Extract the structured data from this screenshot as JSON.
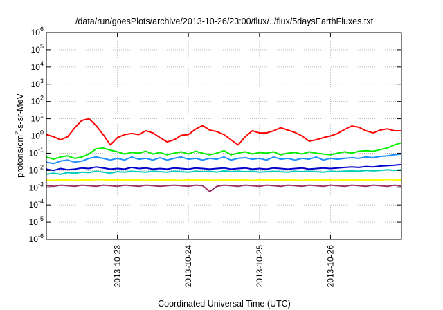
{
  "chart_data": {
    "type": "line",
    "title": "/data/run/goesPlots/archive/2013-10-26/23:00/flux/../flux/5daysEarthFluxes.txt",
    "xlabel": "Coordinated Universal Time (UTC)",
    "ylabel": {
      "prefix": "protons/cm",
      "sup": "2",
      "suffix": "-s-sr-MeV"
    },
    "x_range": [
      "2013-10-22",
      "2013-10-27"
    ],
    "xticks": [
      "2013-10-23",
      "2013-10-24",
      "2013-10-25",
      "2013-10-26"
    ],
    "yscale": "log",
    "ylim": [
      1e-06,
      1000000.0
    ],
    "yticks": [
      {
        "base": "10",
        "exp": "-6"
      },
      {
        "base": "10",
        "exp": "-5"
      },
      {
        "base": "10",
        "exp": "-4"
      },
      {
        "base": "10",
        "exp": "-3"
      },
      {
        "base": "10",
        "exp": "-2"
      },
      {
        "base": "10",
        "exp": "-1"
      },
      {
        "base": "10",
        "exp": "0"
      },
      {
        "base": "10",
        "exp": "1"
      },
      {
        "base": "10",
        "exp": "2"
      },
      {
        "base": "10",
        "exp": "3"
      },
      {
        "base": "10",
        "exp": "4"
      },
      {
        "base": "10",
        "exp": "5"
      },
      {
        "base": "10",
        "exp": "6"
      }
    ],
    "grid": true,
    "x_days": [
      0,
      0.1,
      0.2,
      0.3,
      0.4,
      0.5,
      0.6,
      0.7,
      0.8,
      0.9,
      1.0,
      1.1,
      1.2,
      1.3,
      1.4,
      1.5,
      1.6,
      1.7,
      1.8,
      1.9,
      2.0,
      2.1,
      2.2,
      2.3,
      2.4,
      2.5,
      2.6,
      2.7,
      2.8,
      2.9,
      3.0,
      3.1,
      3.2,
      3.3,
      3.4,
      3.5,
      3.6,
      3.7,
      3.8,
      3.9,
      4.0,
      4.1,
      4.2,
      4.3,
      4.4,
      4.5,
      4.6,
      4.7,
      4.8,
      4.9,
      5.0
    ],
    "series": [
      {
        "color": "#ff0000",
        "values": [
          1.2,
          0.9,
          0.6,
          0.9,
          3,
          8,
          10,
          4,
          1.2,
          0.3,
          0.8,
          1.2,
          1.4,
          1.2,
          2,
          1.5,
          0.8,
          0.45,
          0.6,
          1.1,
          1.2,
          2.5,
          4,
          2.2,
          1.8,
          1.2,
          0.6,
          0.3,
          0.9,
          2,
          1.5,
          1.5,
          2,
          3,
          2.2,
          1.6,
          1,
          0.5,
          0.6,
          0.8,
          1,
          1.4,
          2.4,
          3.8,
          3.2,
          2,
          1.5,
          2.2,
          2.6,
          2,
          2
        ]
      },
      {
        "color": "#00ee00",
        "values": [
          0.06,
          0.045,
          0.06,
          0.07,
          0.05,
          0.06,
          0.09,
          0.18,
          0.2,
          0.15,
          0.12,
          0.09,
          0.11,
          0.1,
          0.13,
          0.09,
          0.11,
          0.08,
          0.1,
          0.12,
          0.09,
          0.13,
          0.1,
          0.08,
          0.1,
          0.14,
          0.08,
          0.1,
          0.12,
          0.09,
          0.11,
          0.1,
          0.12,
          0.08,
          0.1,
          0.11,
          0.09,
          0.12,
          0.1,
          0.09,
          0.08,
          0.1,
          0.12,
          0.1,
          0.13,
          0.14,
          0.13,
          0.16,
          0.2,
          0.3,
          0.4
        ]
      },
      {
        "color": "#1e90ff",
        "values": [
          0.03,
          0.025,
          0.035,
          0.04,
          0.03,
          0.035,
          0.05,
          0.06,
          0.05,
          0.04,
          0.05,
          0.04,
          0.06,
          0.045,
          0.05,
          0.04,
          0.055,
          0.04,
          0.05,
          0.06,
          0.045,
          0.05,
          0.04,
          0.05,
          0.045,
          0.06,
          0.04,
          0.05,
          0.055,
          0.045,
          0.05,
          0.04,
          0.06,
          0.045,
          0.05,
          0.04,
          0.05,
          0.045,
          0.06,
          0.04,
          0.05,
          0.045,
          0.05,
          0.055,
          0.05,
          0.06,
          0.055,
          0.065,
          0.07,
          0.08,
          0.09
        ]
      },
      {
        "color": "#0000cc",
        "values": [
          0.012,
          0.01,
          0.013,
          0.011,
          0.012,
          0.014,
          0.013,
          0.016,
          0.014,
          0.012,
          0.013,
          0.012,
          0.015,
          0.013,
          0.014,
          0.012,
          0.013,
          0.012,
          0.014,
          0.013,
          0.012,
          0.014,
          0.013,
          0.012,
          0.013,
          0.014,
          0.012,
          0.013,
          0.014,
          0.012,
          0.013,
          0.012,
          0.014,
          0.013,
          0.012,
          0.013,
          0.014,
          0.012,
          0.013,
          0.014,
          0.013,
          0.014,
          0.015,
          0.016,
          0.015,
          0.017,
          0.016,
          0.018,
          0.019,
          0.02,
          0.022
        ]
      },
      {
        "color": "#00ccbb",
        "values": [
          0.006,
          0.007,
          0.006,
          0.0075,
          0.007,
          0.008,
          0.0075,
          0.009,
          0.008,
          0.007,
          0.0085,
          0.008,
          0.009,
          0.0085,
          0.008,
          0.009,
          0.0085,
          0.008,
          0.009,
          0.0085,
          0.008,
          0.009,
          0.0085,
          0.009,
          0.008,
          0.0095,
          0.0085,
          0.009,
          0.0085,
          0.009,
          0.008,
          0.0085,
          0.009,
          0.0085,
          0.008,
          0.009,
          0.0085,
          0.009,
          0.0085,
          0.008,
          0.009,
          0.0085,
          0.009,
          0.0095,
          0.009,
          0.01,
          0.0095,
          0.01,
          0.011,
          0.01,
          0.011
        ]
      },
      {
        "color": "#ffff00",
        "values": [
          0.0028,
          0.0027,
          0.0029,
          0.0028,
          0.0027,
          0.0029,
          0.0028,
          0.003,
          0.0029,
          0.0028,
          0.0029,
          0.0028,
          0.0029,
          0.0028,
          0.0027,
          0.0029,
          0.0028,
          0.0029,
          0.0028,
          0.0027,
          0.0029,
          0.0028,
          0.0029,
          0.0028,
          0.0027,
          0.0029,
          0.0028,
          0.0029,
          0.0028,
          0.0027,
          0.0029,
          0.0028,
          0.0029,
          0.0028,
          0.0029,
          0.0028,
          0.0027,
          0.0029,
          0.0028,
          0.0029,
          0.0028,
          0.0027,
          0.0029,
          0.0028,
          0.0029,
          0.0028,
          0.0029,
          0.0028,
          0.003,
          0.0029,
          0.0028
        ]
      },
      {
        "color": "#993366",
        "values": [
          0.0013,
          0.0012,
          0.0014,
          0.0013,
          0.0012,
          0.0014,
          0.0013,
          0.0012,
          0.0014,
          0.0013,
          0.0012,
          0.0014,
          0.0013,
          0.0012,
          0.0014,
          0.0013,
          0.0012,
          0.0013,
          0.0014,
          0.0013,
          0.0012,
          0.0014,
          0.0013,
          0.0006,
          0.0012,
          0.0014,
          0.0013,
          0.0012,
          0.0014,
          0.0013,
          0.0012,
          0.0014,
          0.0013,
          0.0012,
          0.0014,
          0.0013,
          0.0012,
          0.0014,
          0.0013,
          0.0012,
          0.0014,
          0.0013,
          0.0012,
          0.0014,
          0.0013,
          0.0012,
          0.0014,
          0.0013,
          0.0012,
          0.0014,
          0.0012
        ]
      }
    ]
  }
}
